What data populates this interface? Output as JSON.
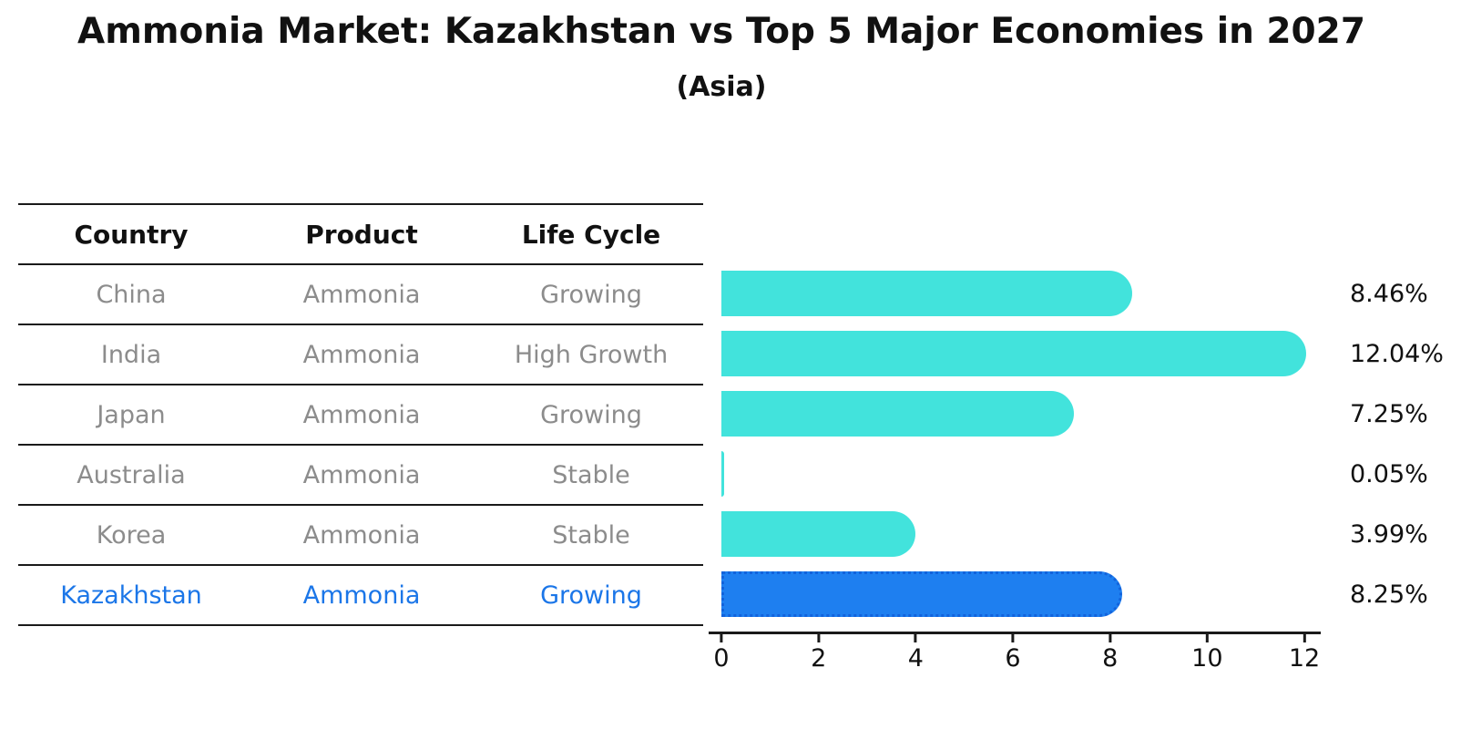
{
  "title": "Ammonia Market: Kazakhstan vs Top 5 Major Economies in 2027",
  "subtitle": "(Asia)",
  "table": {
    "headers": [
      "Country",
      "Product",
      "Life Cycle"
    ],
    "rows": [
      {
        "country": "China",
        "product": "Ammonia",
        "life_cycle": "Growing"
      },
      {
        "country": "India",
        "product": "Ammonia",
        "life_cycle": "High Growth"
      },
      {
        "country": "Japan",
        "product": "Ammonia",
        "life_cycle": "Growing"
      },
      {
        "country": "Australia",
        "product": "Ammonia",
        "life_cycle": "Stable"
      },
      {
        "country": "Korea",
        "product": "Ammonia",
        "life_cycle": "Stable"
      },
      {
        "country": "Kazakhstan",
        "product": "Ammonia",
        "life_cycle": "Growing"
      }
    ],
    "highlight_row": "Kazakhstan"
  },
  "chart_data": {
    "type": "bar",
    "orientation": "horizontal",
    "title": "Ammonia Market: Kazakhstan vs Top 5 Major Economies in 2027",
    "subtitle": "(Asia)",
    "categories": [
      "China",
      "India",
      "Japan",
      "Australia",
      "Korea",
      "Kazakhstan"
    ],
    "values": [
      8.46,
      12.04,
      7.25,
      0.05,
      3.99,
      8.25
    ],
    "value_labels": [
      "8.46%",
      "12.04%",
      "7.25%",
      "0.05%",
      "3.99%",
      "8.25%"
    ],
    "xticks": [
      0,
      2,
      4,
      6,
      8,
      10,
      12
    ],
    "xlim": [
      0,
      12.3
    ],
    "grid": false,
    "legend": false,
    "bar_color": "#42e3dc",
    "highlight_index": 5,
    "highlight_color": "#1e7ff0",
    "highlight_border_color": "#1263dc"
  },
  "colors": {
    "background": "#ffffff",
    "text_primary": "#111111",
    "text_muted": "#8c8c8c",
    "highlight_text": "#1b76e8",
    "line": "#1a1a1a"
  }
}
